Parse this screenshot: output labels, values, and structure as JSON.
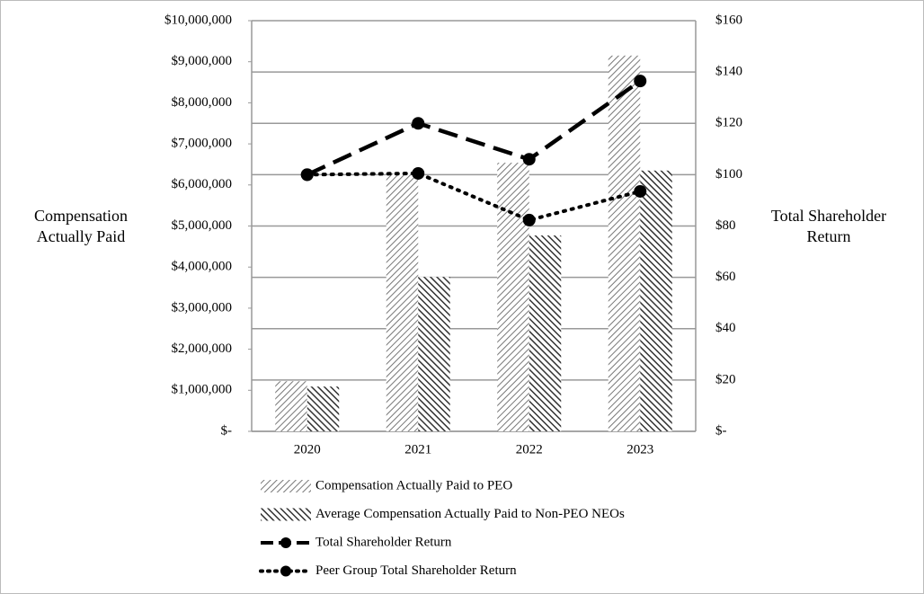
{
  "chart_data": {
    "type": "combo",
    "y_label": "Compensation Actually Paid",
    "y2_label": "Total Shareholder Return",
    "categories": [
      "2020",
      "2021",
      "2022",
      "2023"
    ],
    "ylim": [
      0,
      10000000
    ],
    "yticks": [
      {
        "value": 0,
        "label": "$-"
      },
      {
        "value": 1000000,
        "label": "$1,000,000"
      },
      {
        "value": 2000000,
        "label": "$2,000,000"
      },
      {
        "value": 3000000,
        "label": "$3,000,000"
      },
      {
        "value": 4000000,
        "label": "$4,000,000"
      },
      {
        "value": 5000000,
        "label": "$5,000,000"
      },
      {
        "value": 6000000,
        "label": "$6,000,000"
      },
      {
        "value": 7000000,
        "label": "$7,000,000"
      },
      {
        "value": 8000000,
        "label": "$8,000,000"
      },
      {
        "value": 9000000,
        "label": "$9,000,000"
      },
      {
        "value": 10000000,
        "label": "$10,000,000"
      }
    ],
    "y2lim": [
      0,
      160
    ],
    "y2ticks": [
      {
        "value": 0,
        "label": "$-"
      },
      {
        "value": 20,
        "label": "$20"
      },
      {
        "value": 40,
        "label": "$40"
      },
      {
        "value": 60,
        "label": "$60"
      },
      {
        "value": 80,
        "label": "$80"
      },
      {
        "value": 100,
        "label": "$100"
      },
      {
        "value": 120,
        "label": "$120"
      },
      {
        "value": 140,
        "label": "$140"
      },
      {
        "value": 160,
        "label": "$160"
      }
    ],
    "grid": true,
    "legend": "bottom",
    "series": [
      {
        "name": "Compensation Actually Paid to PEO",
        "kind": "bar",
        "color": "#666666",
        "pattern": "light-hatch",
        "values": [
          1220000,
          6280000,
          6540000,
          9150000
        ]
      },
      {
        "name": "Average Compensation Actually Paid to Non-PEO NEOs",
        "kind": "bar",
        "color": "#444444",
        "pattern": "dark-hatch",
        "values": [
          1090000,
          3760000,
          4770000,
          6350000
        ]
      },
      {
        "name": "Total Shareholder Return",
        "kind": "line",
        "axis": "y2",
        "color": "#000000",
        "dash": "dashed",
        "values": [
          100,
          120,
          106,
          136.5
        ]
      },
      {
        "name": "Peer Group Total Shareholder Return",
        "kind": "line",
        "axis": "y2",
        "color": "#000000",
        "dash": "dotted",
        "values": [
          100,
          100.5,
          82.3,
          93.5
        ]
      }
    ]
  }
}
